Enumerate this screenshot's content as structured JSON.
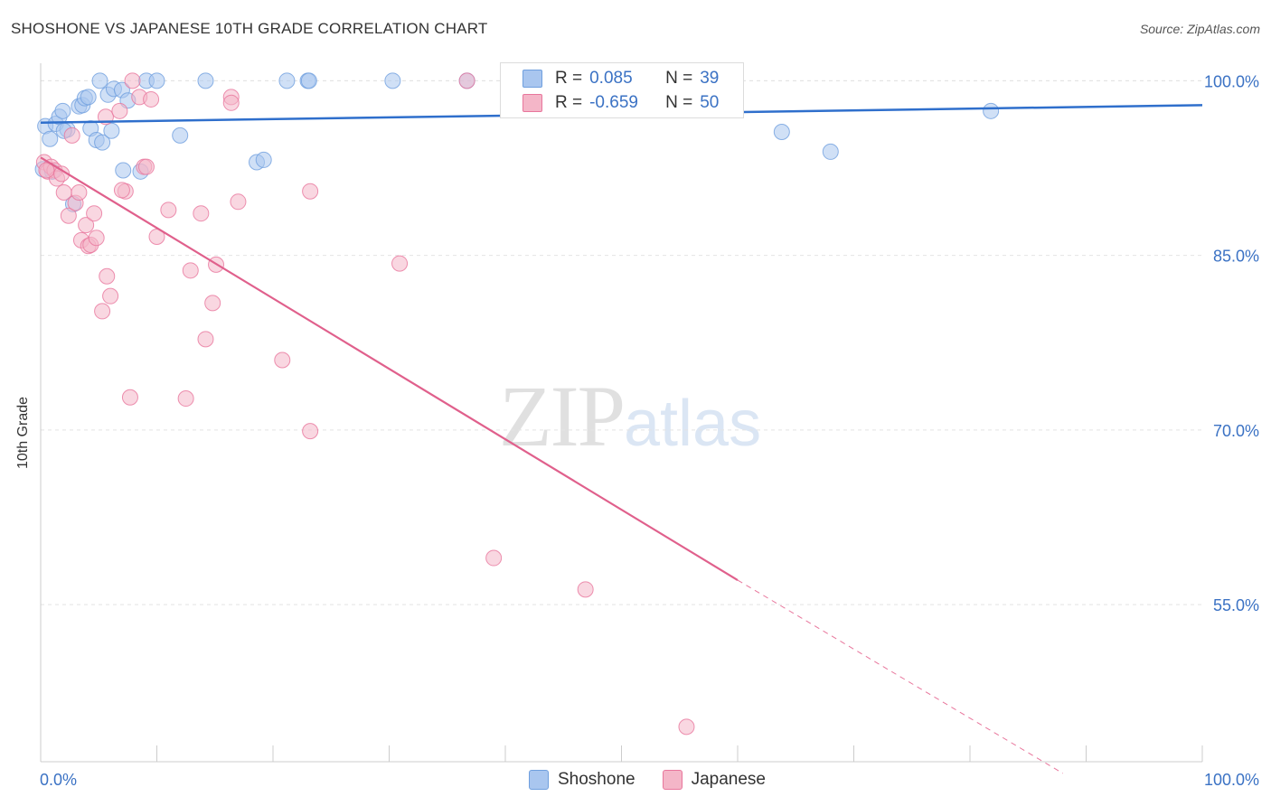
{
  "header": {
    "title": "SHOSHONE VS JAPANESE 10TH GRADE CORRELATION CHART",
    "source": "Source: ZipAtlas.com"
  },
  "watermark": {
    "zip": "ZIP",
    "atlas": "atlas"
  },
  "legend": {
    "r_label": "R =",
    "n_label": "N =",
    "rows": [
      {
        "series": "Shoshone",
        "r": "0.085",
        "n": "39",
        "color": "#a9c6ef"
      },
      {
        "series": "Japanese",
        "r": "-0.659",
        "n": "50",
        "color": "#f4b6c8"
      }
    ]
  },
  "chart_data": {
    "type": "scatter",
    "title": "SHOSHONE VS JAPANESE 10TH GRADE CORRELATION CHART",
    "xlabel": "",
    "ylabel": "10th Grade",
    "xlim": [
      0,
      100
    ],
    "ylim": [
      41.5,
      101.5
    ],
    "x_tick_labels": [
      "0.0%",
      "100.0%"
    ],
    "y_ticks": [
      100,
      85,
      70,
      55
    ],
    "y_tick_labels": [
      "100.0%",
      "85.0%",
      "70.0%",
      "55.0%"
    ],
    "grid": true,
    "series": [
      {
        "name": "Shoshone",
        "color": "#6f9fde",
        "fill": "#a9c6ef",
        "points": [
          [
            0.4,
            96.1
          ],
          [
            0.8,
            95.0
          ],
          [
            1.3,
            96.3
          ],
          [
            1.6,
            96.9
          ],
          [
            1.9,
            97.4
          ],
          [
            2.3,
            95.8
          ],
          [
            2.8,
            89.4
          ],
          [
            3.3,
            97.8
          ],
          [
            3.6,
            97.9
          ],
          [
            3.8,
            98.5
          ],
          [
            4.1,
            98.6
          ],
          [
            4.3,
            95.9
          ],
          [
            4.8,
            94.9
          ],
          [
            5.1,
            100.0
          ],
          [
            5.3,
            94.7
          ],
          [
            5.8,
            98.8
          ],
          [
            6.1,
            95.7
          ],
          [
            6.3,
            99.3
          ],
          [
            7.0,
            99.2
          ],
          [
            7.1,
            92.3
          ],
          [
            7.5,
            98.3
          ],
          [
            8.6,
            92.2
          ],
          [
            9.1,
            100.0
          ],
          [
            10.0,
            100.0
          ],
          [
            12.0,
            95.3
          ],
          [
            14.2,
            100.0
          ],
          [
            18.6,
            93.0
          ],
          [
            19.2,
            93.2
          ],
          [
            21.2,
            100.0
          ],
          [
            23.0,
            100.0
          ],
          [
            23.1,
            100.0
          ],
          [
            30.3,
            100.0
          ],
          [
            36.7,
            100.0
          ],
          [
            63.8,
            95.6
          ],
          [
            68.0,
            93.9
          ],
          [
            81.8,
            97.4
          ],
          [
            0.2,
            92.4
          ],
          [
            1.0,
            92.2
          ],
          [
            2.0,
            95.7
          ]
        ]
      },
      {
        "name": "Japanese",
        "color": "#e8769c",
        "fill": "#f4b6c8",
        "points": [
          [
            0.3,
            93.0
          ],
          [
            0.6,
            92.2
          ],
          [
            0.9,
            92.6
          ],
          [
            1.2,
            92.3
          ],
          [
            1.4,
            91.6
          ],
          [
            1.8,
            92.0
          ],
          [
            2.0,
            90.4
          ],
          [
            2.4,
            88.4
          ],
          [
            2.7,
            95.3
          ],
          [
            3.0,
            89.5
          ],
          [
            3.3,
            90.4
          ],
          [
            3.5,
            86.3
          ],
          [
            3.9,
            87.6
          ],
          [
            4.1,
            85.8
          ],
          [
            4.3,
            85.9
          ],
          [
            4.6,
            88.6
          ],
          [
            4.8,
            86.5
          ],
          [
            5.3,
            80.2
          ],
          [
            5.6,
            96.9
          ],
          [
            5.7,
            83.2
          ],
          [
            6.0,
            81.5
          ],
          [
            6.8,
            97.4
          ],
          [
            7.3,
            90.5
          ],
          [
            7.0,
            90.6
          ],
          [
            7.9,
            100.0
          ],
          [
            7.7,
            72.8
          ],
          [
            8.5,
            98.6
          ],
          [
            8.9,
            92.6
          ],
          [
            9.1,
            92.6
          ],
          [
            9.5,
            98.4
          ],
          [
            10.0,
            86.6
          ],
          [
            11.0,
            88.9
          ],
          [
            12.5,
            72.7
          ],
          [
            12.9,
            83.7
          ],
          [
            13.8,
            88.6
          ],
          [
            14.2,
            77.8
          ],
          [
            14.8,
            80.9
          ],
          [
            15.1,
            84.2
          ],
          [
            16.4,
            98.6
          ],
          [
            16.4,
            98.1
          ],
          [
            17.0,
            89.6
          ],
          [
            20.8,
            76.0
          ],
          [
            23.2,
            90.5
          ],
          [
            23.2,
            69.9
          ],
          [
            30.9,
            84.3
          ],
          [
            36.7,
            100.0
          ],
          [
            39.0,
            59.0
          ],
          [
            46.9,
            56.3
          ],
          [
            55.6,
            44.5
          ],
          [
            0.5,
            92.3
          ]
        ]
      }
    ],
    "trendlines": [
      {
        "series": "Shoshone",
        "from": [
          0,
          96.4
        ],
        "to": [
          100,
          97.9
        ],
        "dashed_from": null
      },
      {
        "series": "Japanese",
        "from": [
          0,
          93.4
        ],
        "to": [
          60,
          57.1
        ],
        "dashed_to": [
          88,
          40.5
        ]
      }
    ]
  }
}
